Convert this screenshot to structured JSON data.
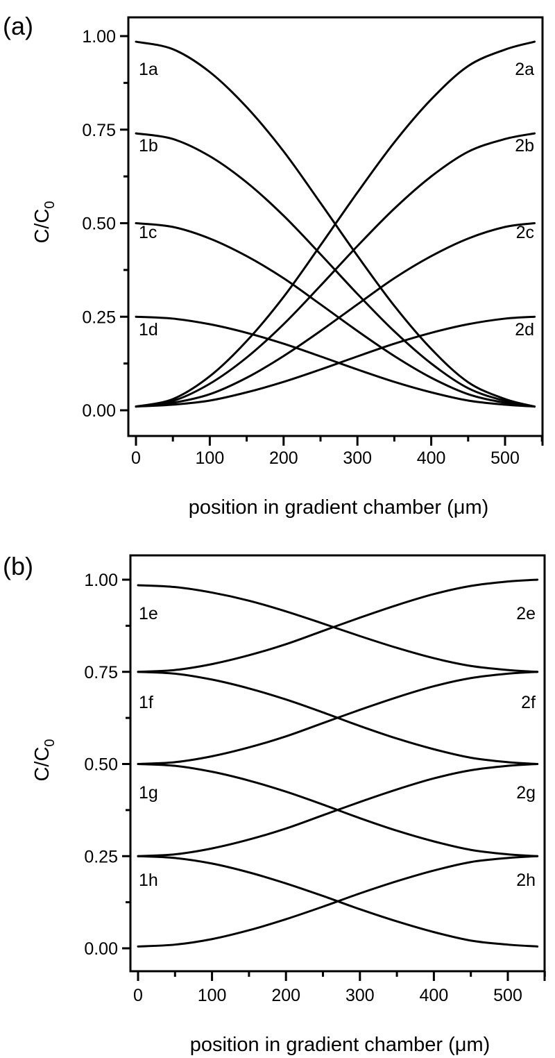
{
  "chart_data": [
    {
      "type": "line",
      "panel_label": "(a)",
      "xlabel": "position in gradient chamber (μm)",
      "ylabel": "C/C",
      "ylabel_sub": "0",
      "xlim": [
        -10,
        550
      ],
      "ylim": [
        -0.07,
        1.05
      ],
      "xticks": [
        "0",
        "100",
        "200",
        "300",
        "400",
        "500"
      ],
      "xtick_values": [
        0,
        100,
        200,
        300,
        400,
        500
      ],
      "yticks": [
        "0.00",
        "0.25",
        "0.50",
        "0.75",
        "1.00"
      ],
      "ytick_values": [
        0,
        0.25,
        0.5,
        0.75,
        1.0
      ],
      "grid": false,
      "x": [
        0,
        50,
        100,
        150,
        200,
        250,
        300,
        350,
        400,
        450,
        500,
        540
      ],
      "series": [
        {
          "name": "1a",
          "values": [
            0.985,
            0.965,
            0.904,
            0.81,
            0.692,
            0.554,
            0.413,
            0.279,
            0.164,
            0.075,
            0.03,
            0.01
          ]
        },
        {
          "name": "1b",
          "values": [
            0.74,
            0.725,
            0.679,
            0.609,
            0.52,
            0.417,
            0.311,
            0.211,
            0.125,
            0.059,
            0.025,
            0.01
          ]
        },
        {
          "name": "1c",
          "values": [
            0.5,
            0.49,
            0.459,
            0.412,
            0.353,
            0.283,
            0.212,
            0.145,
            0.087,
            0.043,
            0.02,
            0.01
          ]
        },
        {
          "name": "1d",
          "values": [
            0.25,
            0.245,
            0.23,
            0.207,
            0.178,
            0.144,
            0.109,
            0.076,
            0.048,
            0.026,
            0.015,
            0.01
          ]
        },
        {
          "name": "2a",
          "values": [
            0.01,
            0.03,
            0.091,
            0.185,
            0.303,
            0.441,
            0.582,
            0.716,
            0.831,
            0.92,
            0.964,
            0.985
          ]
        },
        {
          "name": "2b",
          "values": [
            0.01,
            0.025,
            0.071,
            0.141,
            0.23,
            0.333,
            0.439,
            0.539,
            0.625,
            0.691,
            0.725,
            0.74
          ]
        },
        {
          "name": "2c",
          "values": [
            0.01,
            0.02,
            0.043,
            0.087,
            0.145,
            0.212,
            0.283,
            0.353,
            0.412,
            0.459,
            0.49,
            0.5
          ]
        },
        {
          "name": "2d",
          "values": [
            0.01,
            0.015,
            0.026,
            0.048,
            0.076,
            0.109,
            0.144,
            0.178,
            0.207,
            0.23,
            0.245,
            0.25
          ]
        }
      ]
    },
    {
      "type": "line",
      "panel_label": "(b)",
      "xlabel": "position in gradient chamber (μm)",
      "ylabel": "C/C",
      "ylabel_sub": "0",
      "xlim": [
        -10,
        550
      ],
      "ylim": [
        -0.07,
        1.05
      ],
      "xticks": [
        "0",
        "100",
        "200",
        "300",
        "400",
        "500"
      ],
      "xtick_values": [
        0,
        100,
        200,
        300,
        400,
        500
      ],
      "yticks": [
        "0.00",
        "0.25",
        "0.50",
        "0.75",
        "1.00"
      ],
      "ytick_values": [
        0,
        0.25,
        0.5,
        0.75,
        1.0
      ],
      "grid": false,
      "x": [
        0,
        50,
        100,
        150,
        200,
        250,
        300,
        350,
        400,
        450,
        500,
        540
      ],
      "series": [
        {
          "name": "1e",
          "values": [
            0.985,
            0.98,
            0.965,
            0.943,
            0.914,
            0.881,
            0.847,
            0.815,
            0.787,
            0.766,
            0.755,
            0.75
          ]
        },
        {
          "name": "1f",
          "values": [
            0.75,
            0.745,
            0.729,
            0.705,
            0.675,
            0.64,
            0.603,
            0.569,
            0.54,
            0.517,
            0.505,
            0.5
          ]
        },
        {
          "name": "1g",
          "values": [
            0.5,
            0.495,
            0.479,
            0.455,
            0.425,
            0.39,
            0.353,
            0.319,
            0.29,
            0.267,
            0.255,
            0.25
          ]
        },
        {
          "name": "1h",
          "values": [
            0.25,
            0.245,
            0.23,
            0.206,
            0.176,
            0.142,
            0.106,
            0.073,
            0.044,
            0.021,
            0.01,
            0.005
          ]
        },
        {
          "name": "2e",
          "values": [
            0.75,
            0.755,
            0.771,
            0.795,
            0.825,
            0.861,
            0.897,
            0.931,
            0.961,
            0.983,
            0.995,
            1.0
          ]
        },
        {
          "name": "2f",
          "values": [
            0.5,
            0.505,
            0.521,
            0.545,
            0.575,
            0.611,
            0.647,
            0.681,
            0.711,
            0.733,
            0.745,
            0.75
          ]
        },
        {
          "name": "2g",
          "values": [
            0.25,
            0.255,
            0.271,
            0.295,
            0.325,
            0.361,
            0.397,
            0.431,
            0.461,
            0.483,
            0.495,
            0.5
          ]
        },
        {
          "name": "2h",
          "values": [
            0.005,
            0.01,
            0.025,
            0.049,
            0.079,
            0.113,
            0.149,
            0.182,
            0.211,
            0.234,
            0.245,
            0.25
          ]
        }
      ]
    }
  ]
}
